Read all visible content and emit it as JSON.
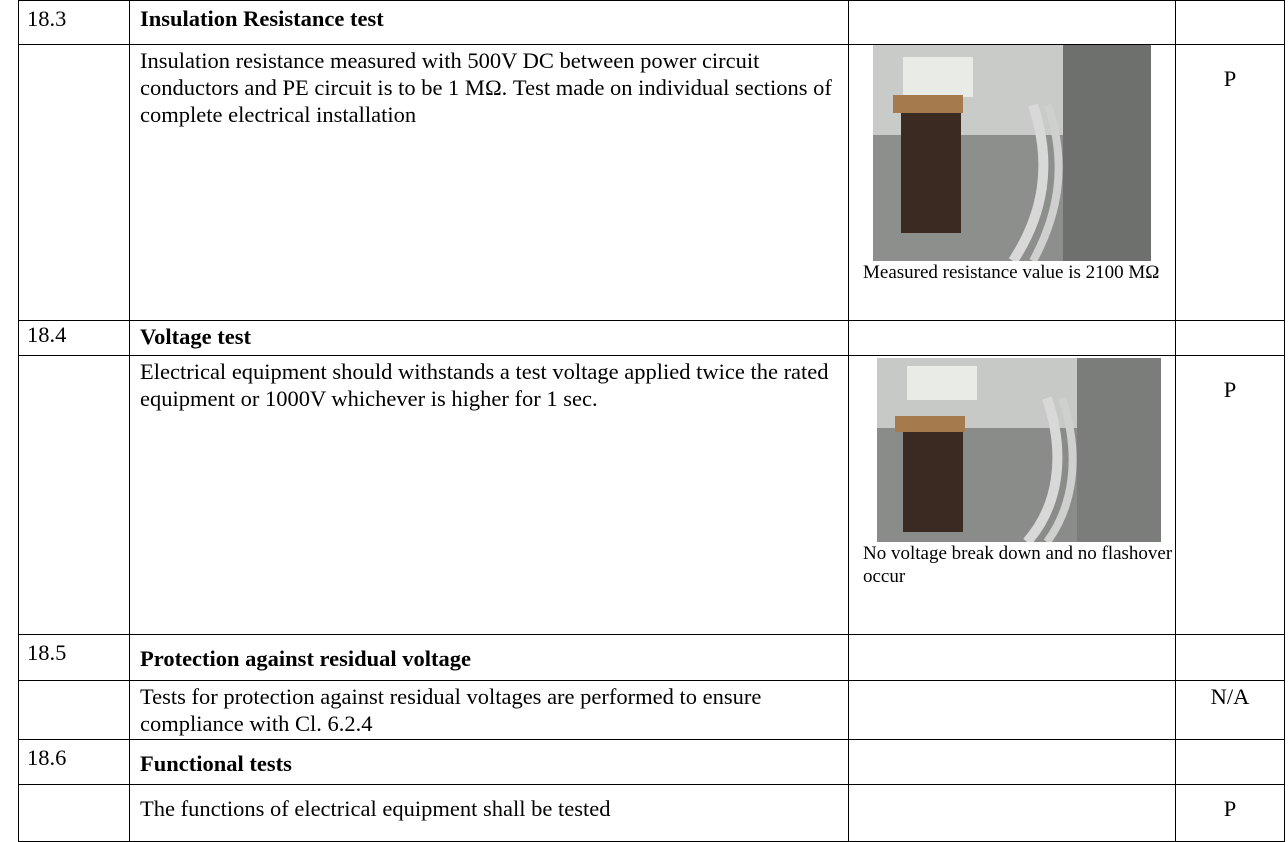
{
  "table": {
    "rows": [
      {
        "clause": "18.3",
        "title": "Insulation Resistance test"
      },
      {
        "requirement": "Insulation resistance measured with 500V DC between power circuit conductors and PE circuit is to be 1 MΩ. Test made on individual sections of complete electrical installation",
        "remark": "Measured resistance value is 2100 MΩ",
        "verdict": "P"
      },
      {
        "clause": "18.4",
        "title": "Voltage test"
      },
      {
        "requirement": "Electrical equipment should withstands a test voltage applied twice the rated equipment or 1000V whichever is higher for 1 sec.",
        "remark": "No voltage break down and no flashover occur",
        "verdict": "P"
      },
      {
        "clause": "18.5",
        "title": "Protection against residual voltage"
      },
      {
        "requirement": "Tests for protection against residual voltages are performed to ensure compliance with Cl. 6.2.4",
        "verdict": "N/A"
      },
      {
        "clause": "18.6",
        "title": "Functional tests"
      },
      {
        "requirement": "The functions of electrical equipment shall be tested",
        "verdict": "P"
      }
    ]
  }
}
